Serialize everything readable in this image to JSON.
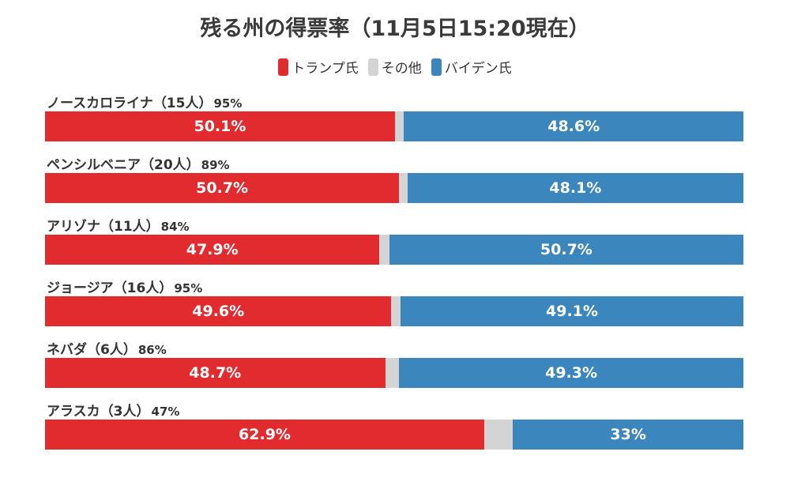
{
  "colors": {
    "trump": "#e12b2f",
    "other": "#d4d4d4",
    "biden": "#3a86bd"
  },
  "chart_data": {
    "type": "bar",
    "stacked": true,
    "orientation": "horizontal",
    "title": "残る州の得票率（11月5日15:20現在）",
    "legend": [
      "トランプ氏",
      "その他",
      "バイデン氏"
    ],
    "legend_position": "top",
    "rows": [
      {
        "state": "ノースカロライナ",
        "votes": "（15人）",
        "reported": "95%",
        "trump": 50.1,
        "trump_label": "50.1%",
        "other": 1.3,
        "biden": 48.6,
        "biden_label": "48.6%"
      },
      {
        "state": "ペンシルベニア",
        "votes": "（20人）",
        "reported": "89%",
        "trump": 50.7,
        "trump_label": "50.7%",
        "other": 1.2,
        "biden": 48.1,
        "biden_label": "48.1%"
      },
      {
        "state": "アリゾナ",
        "votes": "（11人）",
        "reported": "84%",
        "trump": 47.9,
        "trump_label": "47.9%",
        "other": 1.4,
        "biden": 50.7,
        "biden_label": "50.7%"
      },
      {
        "state": "ジョージア",
        "votes": "（16人）",
        "reported": "95%",
        "trump": 49.6,
        "trump_label": "49.6%",
        "other": 1.3,
        "biden": 49.1,
        "biden_label": "49.1%"
      },
      {
        "state": "ネバダ",
        "votes": "（6人）",
        "reported": "86%",
        "trump": 48.7,
        "trump_label": "48.7%",
        "other": 2.0,
        "biden": 49.3,
        "biden_label": "49.3%"
      },
      {
        "state": "アラスカ",
        "votes": "（3人）",
        "reported": "47%",
        "trump": 62.9,
        "trump_label": "62.9%",
        "other": 4.1,
        "biden": 33.0,
        "biden_label": "33%"
      }
    ]
  }
}
